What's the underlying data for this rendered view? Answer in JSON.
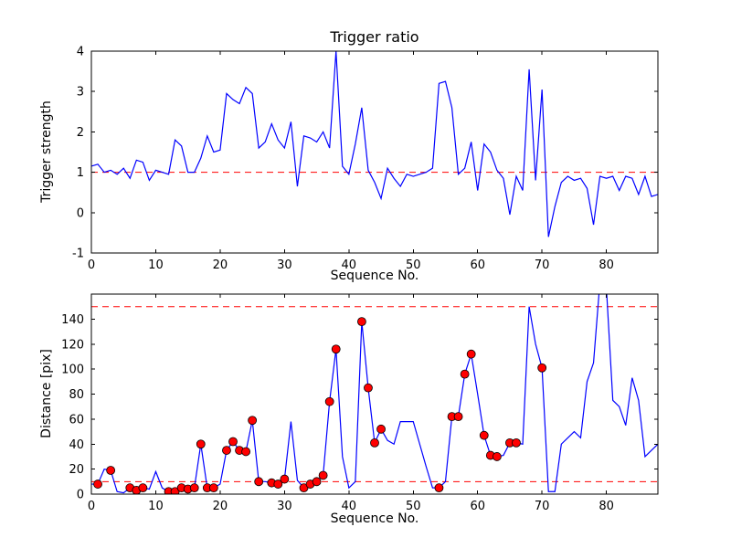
{
  "chart_data": [
    {
      "type": "line",
      "title": "Trigger ratio",
      "xlabel": "Sequence No.",
      "ylabel": "Trigger strength",
      "xlim": [
        0,
        88
      ],
      "ylim": [
        -1,
        4
      ],
      "xticks": [
        0,
        10,
        20,
        30,
        40,
        50,
        60,
        70,
        80
      ],
      "yticks": [
        -1,
        0,
        1,
        2,
        3,
        4
      ],
      "grid": false,
      "legend": "none",
      "line_color": "#0000ff",
      "threshold_color": "#ff0000",
      "thresholds": [
        1.0
      ],
      "x_start": 0,
      "values": [
        1.15,
        1.2,
        1.0,
        1.05,
        0.95,
        1.1,
        0.85,
        1.3,
        1.25,
        0.8,
        1.05,
        1.0,
        0.95,
        1.8,
        1.65,
        1.0,
        1.0,
        1.35,
        1.9,
        1.5,
        1.55,
        2.95,
        2.8,
        2.7,
        3.1,
        2.95,
        1.6,
        1.75,
        2.2,
        1.8,
        1.6,
        2.25,
        0.65,
        1.9,
        1.85,
        1.75,
        2.0,
        1.6,
        4.0,
        1.15,
        0.95,
        1.7,
        2.6,
        1.05,
        0.75,
        0.35,
        1.1,
        0.85,
        0.65,
        0.95,
        0.9,
        0.95,
        1.0,
        1.1,
        3.2,
        3.25,
        2.6,
        0.95,
        1.1,
        1.75,
        0.55,
        1.7,
        1.5,
        1.05,
        0.85,
        -0.05,
        0.9,
        0.55,
        3.55,
        0.8,
        3.05,
        -0.6,
        0.15,
        0.75,
        0.9,
        0.8,
        0.85,
        0.6,
        -0.3,
        0.9,
        0.85,
        0.9,
        0.55,
        0.9,
        0.85,
        0.45,
        0.9,
        0.4,
        0.45
      ]
    },
    {
      "type": "line",
      "title": "",
      "xlabel": "Sequence No.",
      "ylabel": "Distance [pix]",
      "xlim": [
        0,
        88
      ],
      "ylim": [
        0,
        160
      ],
      "xticks": [
        0,
        10,
        20,
        30,
        40,
        50,
        60,
        70,
        80
      ],
      "yticks": [
        0,
        20,
        40,
        60,
        80,
        100,
        120,
        140
      ],
      "grid": false,
      "legend": "none",
      "line_color": "#0000ff",
      "threshold_color": "#ff0000",
      "thresholds": [
        150,
        10
      ],
      "marker_color": "#ff0000",
      "marker_edge_color": "#000000",
      "x_start": 0,
      "values": [
        8,
        8,
        20,
        19,
        2,
        1,
        5,
        3,
        5,
        4,
        18,
        5,
        2,
        2,
        5,
        4,
        5,
        40,
        5,
        5,
        8,
        35,
        42,
        35,
        34,
        59,
        10,
        10,
        9,
        8,
        12,
        58,
        11,
        5,
        8,
        10,
        15,
        74,
        116,
        30,
        5,
        10,
        138,
        85,
        41,
        52,
        43,
        40,
        58,
        58,
        58,
        40,
        22,
        5,
        5,
        10,
        62,
        62,
        96,
        112,
        80,
        47,
        31,
        30,
        31,
        41,
        41,
        40,
        150,
        120,
        101,
        2,
        2,
        40,
        45,
        50,
        45,
        90,
        105,
        170,
        165,
        75,
        70,
        55,
        93,
        75,
        30,
        35,
        40
      ],
      "markers": [
        [
          1,
          8
        ],
        [
          3,
          19
        ],
        [
          6,
          5
        ],
        [
          7,
          3
        ],
        [
          8,
          5
        ],
        [
          12,
          2
        ],
        [
          13,
          2
        ],
        [
          14,
          5
        ],
        [
          15,
          4
        ],
        [
          16,
          5
        ],
        [
          17,
          40
        ],
        [
          18,
          5
        ],
        [
          19,
          5
        ],
        [
          21,
          35
        ],
        [
          22,
          42
        ],
        [
          23,
          35
        ],
        [
          24,
          34
        ],
        [
          25,
          59
        ],
        [
          26,
          10
        ],
        [
          28,
          9
        ],
        [
          29,
          8
        ],
        [
          30,
          12
        ],
        [
          33,
          5
        ],
        [
          34,
          8
        ],
        [
          35,
          10
        ],
        [
          36,
          15
        ],
        [
          37,
          74
        ],
        [
          38,
          116
        ],
        [
          42,
          138
        ],
        [
          43,
          85
        ],
        [
          44,
          41
        ],
        [
          45,
          52
        ],
        [
          54,
          5
        ],
        [
          56,
          62
        ],
        [
          57,
          62
        ],
        [
          58,
          96
        ],
        [
          59,
          112
        ],
        [
          61,
          47
        ],
        [
          62,
          31
        ],
        [
          63,
          30
        ],
        [
          65,
          41
        ],
        [
          66,
          41
        ],
        [
          70,
          101
        ]
      ]
    }
  ]
}
